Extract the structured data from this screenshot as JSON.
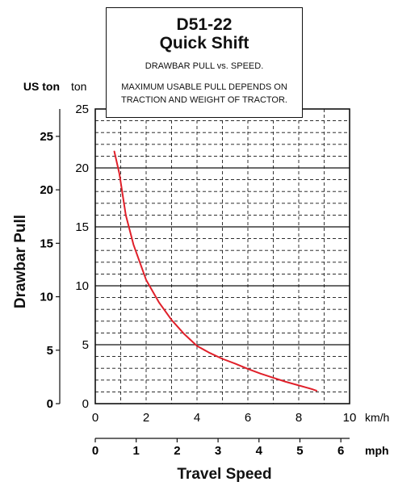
{
  "chart_data": {
    "type": "line",
    "title": "D51-22",
    "subtitle": "Quick Shift",
    "caption": "DRAWBAR PULL vs. SPEED.",
    "note": [
      "MAXIMUM USABLE PULL DEPENDS ON",
      "TRACTION AND WEIGHT OF TRACTOR."
    ],
    "ylabel": "Drawbar Pull",
    "xlabel": "Travel Speed",
    "primary_y": {
      "unit": "ton",
      "range": [
        0,
        25
      ],
      "ticks": [
        0,
        5,
        10,
        15,
        20,
        25
      ]
    },
    "secondary_y": {
      "unit": "US ton",
      "range": [
        0,
        27.56
      ],
      "ticks": [
        0,
        5,
        10,
        15,
        20,
        25
      ]
    },
    "primary_x": {
      "unit": "km/h",
      "range": [
        0,
        10
      ],
      "ticks": [
        0,
        2,
        4,
        6,
        8,
        10
      ]
    },
    "secondary_x": {
      "unit": "mph",
      "range": [
        0,
        6.2137
      ],
      "ticks": [
        0,
        1,
        2,
        3,
        4,
        5,
        6
      ]
    },
    "grid": true,
    "series": [
      {
        "color": "#e0202a",
        "x": [
          0.75,
          0.95,
          1.2,
          1.5,
          2.0,
          2.5,
          3.0,
          3.5,
          4.0,
          4.5,
          5.0,
          5.5,
          6.0,
          6.5,
          7.0,
          7.5,
          8.0,
          8.5,
          8.7
        ],
        "y": [
          21.4,
          19.5,
          16.0,
          13.5,
          10.5,
          8.6,
          7.1,
          5.9,
          4.9,
          4.3,
          3.8,
          3.4,
          2.95,
          2.55,
          2.2,
          1.85,
          1.55,
          1.25,
          1.1
        ]
      }
    ]
  }
}
